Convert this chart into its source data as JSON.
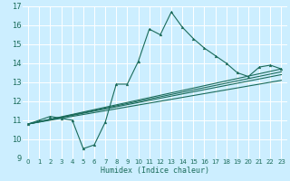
{
  "xlabel": "Humidex (Indice chaleur)",
  "bg_color": "#cceeff",
  "grid_color": "#ffffff",
  "line_color": "#1a6b5a",
  "xlim": [
    -0.5,
    23.5
  ],
  "ylim": [
    9,
    17
  ],
  "xticks": [
    0,
    1,
    2,
    3,
    4,
    5,
    6,
    7,
    8,
    9,
    10,
    11,
    12,
    13,
    14,
    15,
    16,
    17,
    18,
    19,
    20,
    21,
    22,
    23
  ],
  "yticks": [
    9,
    10,
    11,
    12,
    13,
    14,
    15,
    16,
    17
  ],
  "main_x": [
    0,
    1,
    2,
    3,
    4,
    5,
    6,
    7,
    8,
    9,
    10,
    11,
    12,
    13,
    14,
    15,
    16,
    17,
    18,
    19,
    20,
    21,
    22,
    23
  ],
  "main_y": [
    10.8,
    11.0,
    11.2,
    11.1,
    11.0,
    9.5,
    9.7,
    10.9,
    12.9,
    12.9,
    14.1,
    15.8,
    15.5,
    16.7,
    15.9,
    15.3,
    14.8,
    14.4,
    14.0,
    13.5,
    13.3,
    13.8,
    13.9,
    13.7
  ],
  "line1_x": [
    0,
    23
  ],
  "line1_y": [
    10.8,
    13.4
  ],
  "line2_x": [
    0,
    23
  ],
  "line2_y": [
    10.8,
    13.1
  ],
  "line3_x": [
    0,
    23
  ],
  "line3_y": [
    10.8,
    13.7
  ],
  "line4_x": [
    0,
    23
  ],
  "line4_y": [
    10.8,
    13.55
  ]
}
